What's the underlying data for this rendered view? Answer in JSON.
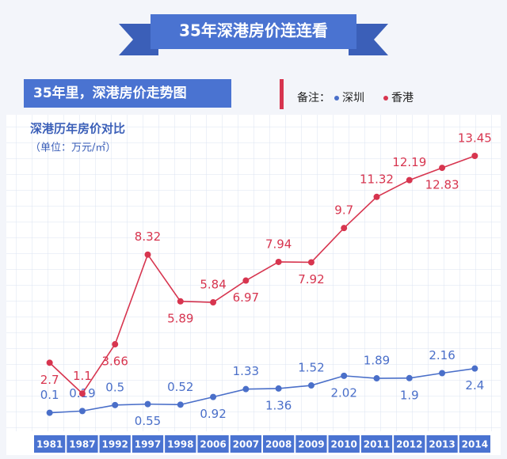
{
  "banner": "35年深港房价连连看",
  "subtitle": "35年里，深港房价走势图",
  "legend_label": "备注：",
  "chart_data": {
    "type": "line",
    "title": "深港历年房价对比",
    "unit": "（单位：万元/㎡）",
    "categories": [
      "1981",
      "1987",
      "1992",
      "1997",
      "1998",
      "2006",
      "2007",
      "2008",
      "2009",
      "2010",
      "2011",
      "2012",
      "2013",
      "2014"
    ],
    "series": [
      {
        "name": "深圳",
        "color": "#4a6fc9",
        "values": [
          0.1,
          0.19,
          0.5,
          0.55,
          0.52,
          0.92,
          1.33,
          1.36,
          1.52,
          2.02,
          1.89,
          1.9,
          2.16,
          2.4
        ]
      },
      {
        "name": "香港",
        "color": "#d7354f",
        "values": [
          2.7,
          1.1,
          3.66,
          8.32,
          5.89,
          5.84,
          6.97,
          7.94,
          7.92,
          9.7,
          11.32,
          12.19,
          12.83,
          13.45
        ]
      }
    ]
  }
}
